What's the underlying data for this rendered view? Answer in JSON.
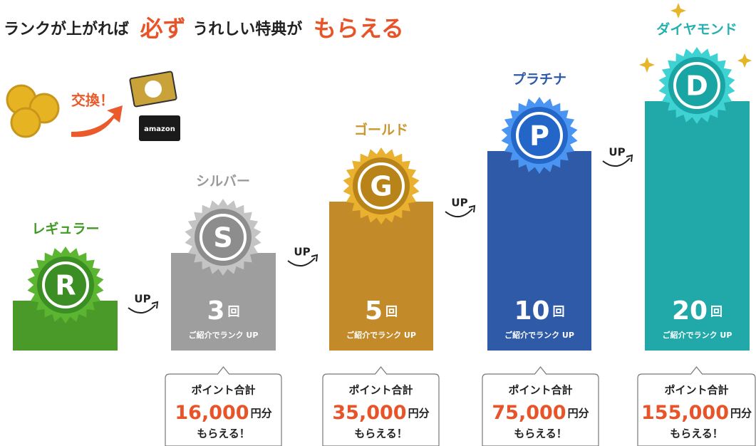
{
  "heading": {
    "part1": "ランクが上がれば",
    "part2": "必ず",
    "part3": "うれしい特典が",
    "part4": "もらえる"
  },
  "exchange": {
    "label": "交換！",
    "card": "amazon"
  },
  "up_label": "UP",
  "ranks": [
    {
      "name": "レギュラー",
      "letter": "R"
    },
    {
      "name": "シルバー",
      "letter": "S",
      "count": "3",
      "count_unit": "回",
      "note": "ご紹介でランク UP",
      "box": {
        "title": "ポイント合計",
        "amount": "16,000",
        "unit": "円分",
        "footer": "もらえる！"
      }
    },
    {
      "name": "ゴールド",
      "letter": "G",
      "count": "5",
      "count_unit": "回",
      "note": "ご紹介でランク UP",
      "box": {
        "title": "ポイント合計",
        "amount": "35,000",
        "unit": "円分",
        "footer": "もらえる！"
      }
    },
    {
      "name": "プラチナ",
      "letter": "P",
      "count": "10",
      "count_unit": "回",
      "note": "ご紹介でランク UP",
      "box": {
        "title": "ポイント合計",
        "amount": "75,000",
        "unit": "円分",
        "footer": "もらえる！"
      }
    },
    {
      "name": "ダイヤモンド",
      "letter": "D",
      "count": "20",
      "count_unit": "回",
      "note": "ご紹介でランク UP",
      "box": {
        "title": "ポイント合計",
        "amount": "155,000",
        "unit": "円分",
        "footer": "もらえる！"
      }
    }
  ]
}
